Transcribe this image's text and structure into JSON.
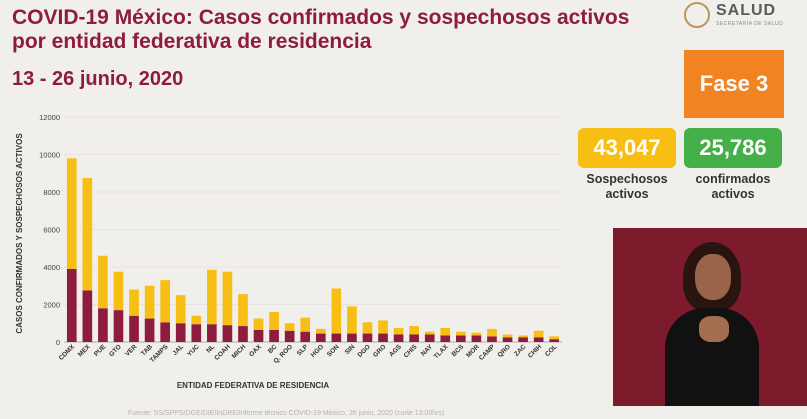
{
  "header": {
    "title": "COVID-19 México: Casos confirmados y sospechosos activos por entidad federativa de residencia",
    "date": "13 - 26 junio, 2020"
  },
  "logo": {
    "name": "SALUD",
    "subtitle": "SECRETARÍA DE SALUD"
  },
  "phase": {
    "label": "Fase 3",
    "color": "#f28322"
  },
  "totals": {
    "suspected": {
      "value": "43,047",
      "label_line1": "Sospechosos",
      "label_line2": "activos",
      "color": "#f7be14"
    },
    "confirmed": {
      "value": "25,786",
      "label_line1": "confirmados",
      "label_line2": "activos",
      "color": "#45b04a"
    }
  },
  "footer": "Fuente: SS/SPPS/DGE/DIE/InDRE/Informe técnico COVID-19 México, 26 junio, 2020 (corte 13:00hrs)",
  "chart_data": {
    "type": "bar",
    "stacked": true,
    "xlabel": "ENTIDAD FEDERATIVA DE RESIDENCIA",
    "ylabel": "CASOS CONFIRMADOS Y SOSPECHOSOS ACTIVOS",
    "ylim": [
      0,
      12000
    ],
    "yticks": [
      0,
      2000,
      4000,
      6000,
      8000,
      10000,
      12000
    ],
    "grid": true,
    "legend": "none",
    "categories": [
      "CDMX",
      "MEX",
      "PUE",
      "GTO",
      "VER",
      "TAB",
      "TAMPS",
      "JAL",
      "YUC",
      "NL",
      "COAH",
      "MICH",
      "OAX",
      "BC",
      "Q. ROO",
      "SLP",
      "HGO",
      "SON",
      "SIN",
      "DGO",
      "GRO",
      "AGS",
      "CHIS",
      "NAY",
      "TLAX",
      "BCS",
      "MOR",
      "CAMP",
      "QRO",
      "ZAC",
      "CHIH",
      "COL"
    ],
    "series": [
      {
        "color": "#8e1c3e",
        "values": [
          3900,
          2750,
          1800,
          1700,
          1400,
          1250,
          1050,
          1000,
          950,
          950,
          900,
          850,
          650,
          650,
          600,
          550,
          450,
          450,
          450,
          450,
          450,
          400,
          400,
          400,
          350,
          350,
          350,
          300,
          250,
          250,
          250,
          150
        ]
      },
      {
        "color": "#f7be14",
        "values": [
          5900,
          6000,
          2800,
          2050,
          1400,
          1750,
          2250,
          1500,
          450,
          2900,
          2850,
          1700,
          600,
          950,
          400,
          750,
          250,
          2400,
          1450,
          600,
          700,
          350,
          450,
          150,
          400,
          200,
          150,
          400,
          150,
          100,
          350,
          150
        ]
      }
    ]
  }
}
